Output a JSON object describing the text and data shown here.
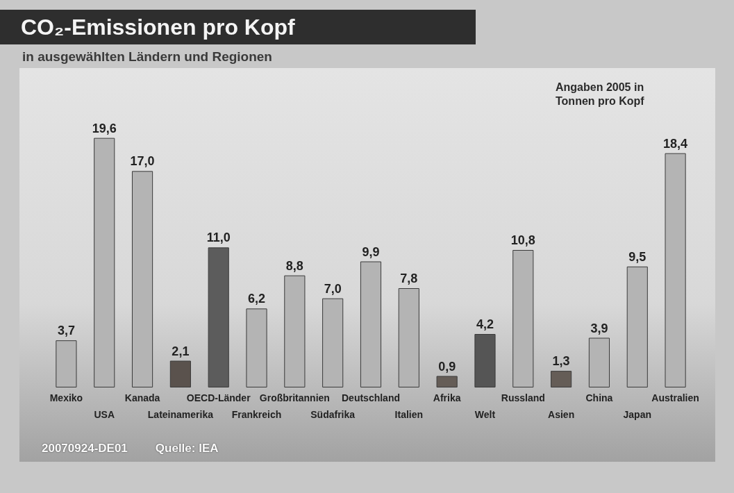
{
  "chart_data": {
    "type": "bar",
    "title": "CO₂-Emissionen pro Kopf",
    "subtitle": "in ausgewählten Ländern und Regionen",
    "annotations": [
      "Angaben 2005 in Tonnen pro Kopf",
      "20070924-DE01",
      "Quelle: IEA"
    ],
    "categories": [
      "Mexiko",
      "USA",
      "Kanada",
      "Lateinamerika",
      "OECD-Länder",
      "Frankreich",
      "Großbritannien",
      "Südafrika",
      "Deutschland",
      "Italien",
      "Afrika",
      "Welt",
      "Russland",
      "Asien",
      "China",
      "Japan",
      "Australien"
    ],
    "values": [
      3.7,
      19.6,
      17.0,
      2.1,
      11.0,
      6.2,
      8.8,
      7.0,
      9.9,
      7.8,
      0.9,
      4.2,
      10.8,
      1.3,
      3.9,
      9.5,
      18.4
    ],
    "value_labels": [
      "3,7",
      "19,6",
      "17,0",
      "2,1",
      "11,0",
      "6,2",
      "8,8",
      "7,0",
      "9,9",
      "7,8",
      "0,9",
      "4,2",
      "10,8",
      "1,3",
      "3,9",
      "9,5",
      "18,4"
    ],
    "colors": [
      "#b4b4b4",
      "#b4b4b4",
      "#b4b4b4",
      "#5a524d",
      "#5c5c5c",
      "#b4b4b4",
      "#b4b4b4",
      "#b4b4b4",
      "#b4b4b4",
      "#b4b4b4",
      "#655d57",
      "#555555",
      "#b4b4b4",
      "#655d57",
      "#b4b4b4",
      "#b4b4b4",
      "#b4b4b4"
    ]
  }
}
